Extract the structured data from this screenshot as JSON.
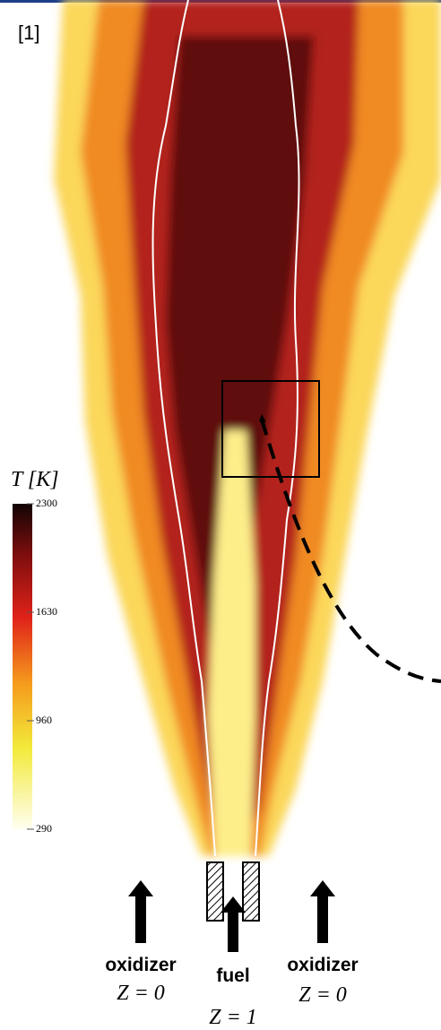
{
  "figure_label": "[1]",
  "colorbar": {
    "title": "T [K]",
    "range": [
      290,
      2300
    ],
    "ticks": [
      2300,
      1630,
      960,
      290
    ]
  },
  "inlets": [
    {
      "label": "oxidizer",
      "condition": "Z = 0"
    },
    {
      "label": "fuel",
      "condition": "Z = 1"
    },
    {
      "label": "oxidizer",
      "condition": "Z = 0"
    }
  ]
}
